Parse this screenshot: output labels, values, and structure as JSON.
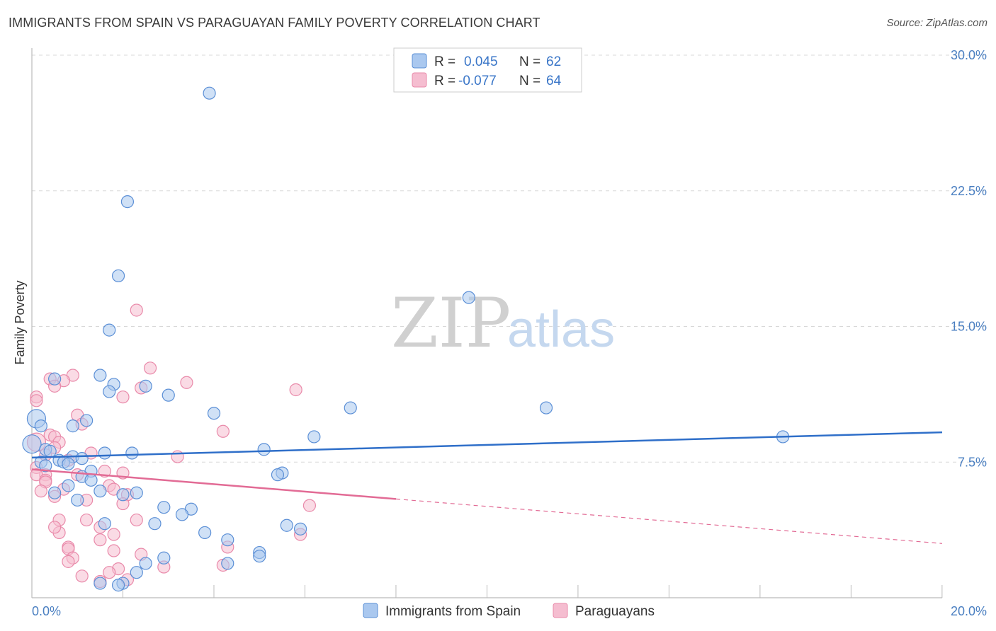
{
  "title": "IMMIGRANTS FROM SPAIN VS PARAGUAYAN FAMILY POVERTY CORRELATION CHART",
  "source": "Source: ZipAtlas.com",
  "watermark": {
    "zip": "ZIP",
    "atlas": "atlas"
  },
  "colors": {
    "blue_fill": "#aac8ef",
    "blue_stroke": "#5b8fd6",
    "blue_line": "#2f6fc9",
    "pink_fill": "#f5bdd0",
    "pink_stroke": "#e98aaa",
    "pink_line": "#e26b95",
    "grid": "#d8d8d8",
    "axis_label": "#4a7fc1"
  },
  "legend": {
    "row1": {
      "r_label": "R =",
      "r_value": "0.045",
      "n_label": "N =",
      "n_value": "62"
    },
    "row2": {
      "r_label": "R =",
      "r_value": "-0.077",
      "n_label": "N =",
      "n_value": "64"
    }
  },
  "chart_data": {
    "type": "scatter",
    "title": "IMMIGRANTS FROM SPAIN VS PARAGUAYAN FAMILY POVERTY CORRELATION CHART",
    "xlabel": "",
    "ylabel": "Family Poverty",
    "xlim": [
      0,
      20
    ],
    "ylim": [
      0,
      30
    ],
    "x_tick_labels": [
      "0.0%",
      "20.0%"
    ],
    "y_ticks": [
      7.5,
      15.0,
      22.5,
      30.0
    ],
    "y_tick_labels": [
      "7.5%",
      "15.0%",
      "22.5%",
      "30.0%"
    ],
    "grid": true,
    "legend_position": "top-center",
    "series": [
      {
        "name": "Immigrants from Spain",
        "color": "blue",
        "r": 0.045,
        "n": 62,
        "trend": {
          "x": [
            0,
            20
          ],
          "y": [
            7.75,
            9.15
          ],
          "dashed_from": null
        },
        "points": [
          [
            3.9,
            27.9
          ],
          [
            2.1,
            21.9
          ],
          [
            1.9,
            17.8
          ],
          [
            1.7,
            14.8
          ],
          [
            9.6,
            16.6
          ],
          [
            1.5,
            12.3
          ],
          [
            0.5,
            12.1
          ],
          [
            1.8,
            11.8
          ],
          [
            2.5,
            11.7
          ],
          [
            1.7,
            11.4
          ],
          [
            3.0,
            11.2
          ],
          [
            7.0,
            10.5
          ],
          [
            11.3,
            10.5
          ],
          [
            4.0,
            10.2
          ],
          [
            0.1,
            9.9
          ],
          [
            0.2,
            9.5
          ],
          [
            1.2,
            9.8
          ],
          [
            0.9,
            9.5
          ],
          [
            6.2,
            8.9
          ],
          [
            16.5,
            8.9
          ],
          [
            0.0,
            8.5
          ],
          [
            0.3,
            8.2
          ],
          [
            5.1,
            8.2
          ],
          [
            0.4,
            8.1
          ],
          [
            1.6,
            8.0
          ],
          [
            2.2,
            8.0
          ],
          [
            0.9,
            7.8
          ],
          [
            1.1,
            7.7
          ],
          [
            0.6,
            7.6
          ],
          [
            0.2,
            7.5
          ],
          [
            0.7,
            7.5
          ],
          [
            0.8,
            7.4
          ],
          [
            0.3,
            7.3
          ],
          [
            5.5,
            6.9
          ],
          [
            5.4,
            6.8
          ],
          [
            1.3,
            7.0
          ],
          [
            1.1,
            6.7
          ],
          [
            1.3,
            6.5
          ],
          [
            0.8,
            6.2
          ],
          [
            1.5,
            5.9
          ],
          [
            2.0,
            5.7
          ],
          [
            0.5,
            5.8
          ],
          [
            2.3,
            5.8
          ],
          [
            1.0,
            5.4
          ],
          [
            2.9,
            5.0
          ],
          [
            3.5,
            4.9
          ],
          [
            3.3,
            4.6
          ],
          [
            1.6,
            4.1
          ],
          [
            2.7,
            4.1
          ],
          [
            5.6,
            4.0
          ],
          [
            5.9,
            3.8
          ],
          [
            3.8,
            3.6
          ],
          [
            4.3,
            3.2
          ],
          [
            5.0,
            2.5
          ],
          [
            5.0,
            2.3
          ],
          [
            2.9,
            2.2
          ],
          [
            4.3,
            1.9
          ],
          [
            2.5,
            1.9
          ],
          [
            2.3,
            1.4
          ],
          [
            2.0,
            0.8
          ],
          [
            1.9,
            0.7
          ],
          [
            1.5,
            0.8
          ]
        ]
      },
      {
        "name": "Paraguayans",
        "color": "pink",
        "r": -0.077,
        "n": 64,
        "trend": {
          "x": [
            0,
            20
          ],
          "y": [
            7.1,
            3.0
          ],
          "dashed_from": 8.0
        },
        "points": [
          [
            2.3,
            15.9
          ],
          [
            2.6,
            12.7
          ],
          [
            0.9,
            12.3
          ],
          [
            0.4,
            12.1
          ],
          [
            0.7,
            12.0
          ],
          [
            3.4,
            11.9
          ],
          [
            0.5,
            11.7
          ],
          [
            2.4,
            11.6
          ],
          [
            5.8,
            11.5
          ],
          [
            2.0,
            11.1
          ],
          [
            0.1,
            11.1
          ],
          [
            0.1,
            10.9
          ],
          [
            1.0,
            10.1
          ],
          [
            1.1,
            9.6
          ],
          [
            4.2,
            9.2
          ],
          [
            0.4,
            9.0
          ],
          [
            0.5,
            8.9
          ],
          [
            0.6,
            8.6
          ],
          [
            0.1,
            8.6
          ],
          [
            0.5,
            8.3
          ],
          [
            0.3,
            7.9
          ],
          [
            1.3,
            8.0
          ],
          [
            3.2,
            7.8
          ],
          [
            0.8,
            7.6
          ],
          [
            0.1,
            7.2
          ],
          [
            1.6,
            7.0
          ],
          [
            2.0,
            6.9
          ],
          [
            0.3,
            6.8
          ],
          [
            0.1,
            6.8
          ],
          [
            1.0,
            6.8
          ],
          [
            0.3,
            6.5
          ],
          [
            0.3,
            6.4
          ],
          [
            1.7,
            6.2
          ],
          [
            1.8,
            6.0
          ],
          [
            0.7,
            6.0
          ],
          [
            0.2,
            5.9
          ],
          [
            2.1,
            5.7
          ],
          [
            0.5,
            5.6
          ],
          [
            1.2,
            5.4
          ],
          [
            2.0,
            5.2
          ],
          [
            6.1,
            5.1
          ],
          [
            0.6,
            4.3
          ],
          [
            1.2,
            4.3
          ],
          [
            2.3,
            4.3
          ],
          [
            1.5,
            3.9
          ],
          [
            0.6,
            3.6
          ],
          [
            1.8,
            3.5
          ],
          [
            5.9,
            3.5
          ],
          [
            1.5,
            3.2
          ],
          [
            0.8,
            2.8
          ],
          [
            0.8,
            2.7
          ],
          [
            4.3,
            2.8
          ],
          [
            1.8,
            2.6
          ],
          [
            0.9,
            2.2
          ],
          [
            0.8,
            2.0
          ],
          [
            4.2,
            1.8
          ],
          [
            2.9,
            1.7
          ],
          [
            1.9,
            1.6
          ],
          [
            1.7,
            1.4
          ],
          [
            1.1,
            1.2
          ],
          [
            2.1,
            1.0
          ],
          [
            1.5,
            0.9
          ],
          [
            0.5,
            3.9
          ],
          [
            2.4,
            2.4
          ]
        ]
      }
    ]
  }
}
